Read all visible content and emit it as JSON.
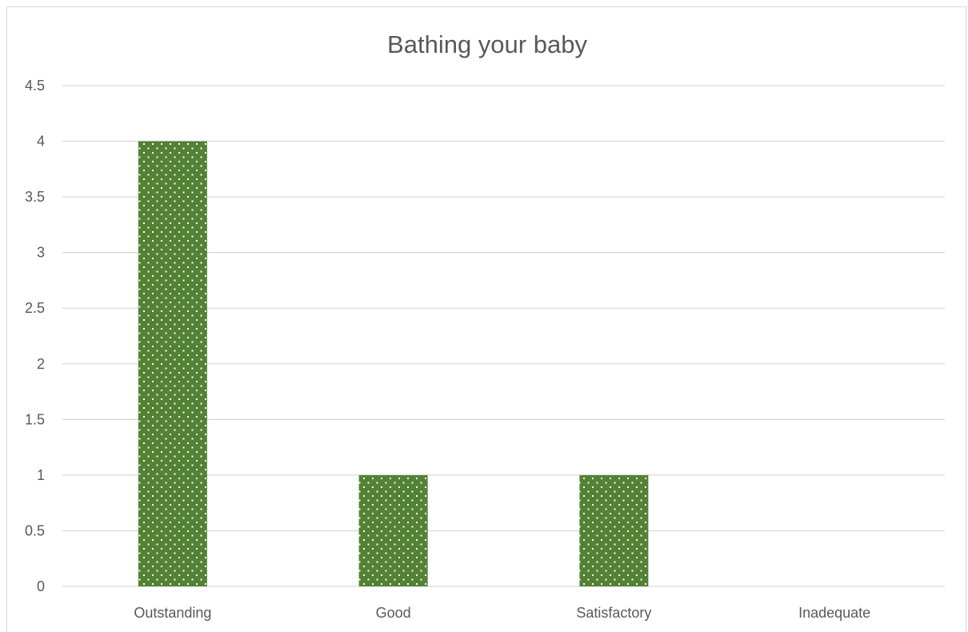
{
  "chart_data": {
    "type": "bar",
    "title": "Bathing your baby",
    "categories": [
      "Outstanding",
      "Good",
      "Satisfactory",
      "Inadequate"
    ],
    "values": [
      4,
      1,
      1,
      0
    ],
    "ylim": [
      0,
      4.5
    ],
    "yticks": [
      "0",
      "0.5",
      "1",
      "1.5",
      "2",
      "2.5",
      "3",
      "3.5",
      "4",
      "4.5"
    ],
    "grid": true,
    "bar_color": "#548235",
    "bar_pattern": "white-dots",
    "gridline_color": "#d9d9d9",
    "legend": "none"
  }
}
